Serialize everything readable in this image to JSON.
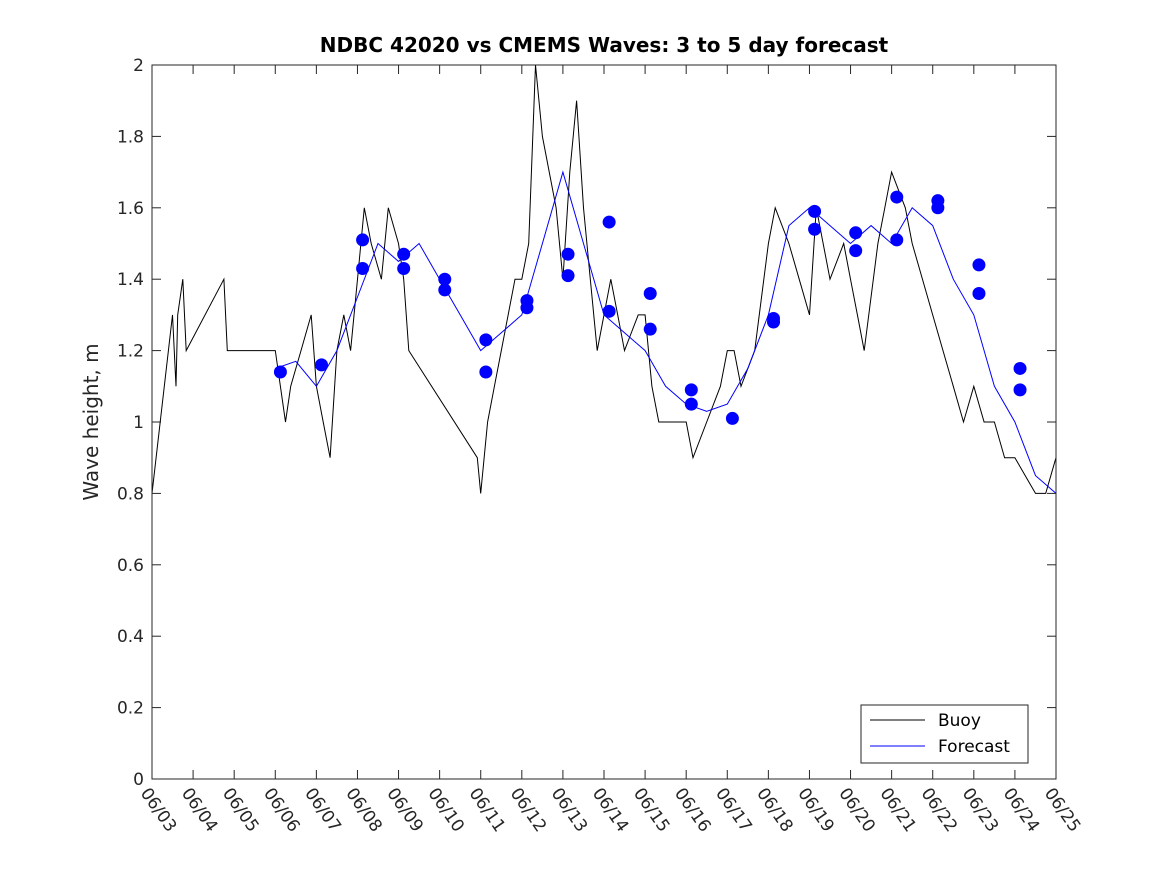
{
  "chart_data": {
    "type": "line",
    "title": "NDBC 42020 vs CMEMS Waves: 3 to 5 day forecast",
    "xlabel": "",
    "ylabel": "Wave height, m",
    "xlim": [
      "06/03",
      "06/25"
    ],
    "ylim": [
      0,
      2
    ],
    "x_tick_labels": [
      "06/03",
      "06/04",
      "06/05",
      "06/06",
      "06/07",
      "06/08",
      "06/09",
      "06/10",
      "06/11",
      "06/12",
      "06/13",
      "06/14",
      "06/15",
      "06/16",
      "06/17",
      "06/18",
      "06/19",
      "06/20",
      "06/21",
      "06/22",
      "06/23",
      "06/24",
      "06/25"
    ],
    "y_ticks": [
      0,
      0.2,
      0.4,
      0.6,
      0.8,
      1,
      1.2,
      1.4,
      1.6,
      1.8,
      2
    ],
    "y_tick_labels": [
      "0",
      "0.2",
      "0.4",
      "0.6",
      "0.8",
      "1",
      "1.2",
      "1.4",
      "1.6",
      "1.8",
      "2"
    ],
    "grid": false,
    "legend_position": "bottom-right",
    "colors": {
      "buoy": "#000000",
      "forecast": "#0000ff",
      "axis": "#262626"
    },
    "series": [
      {
        "name": "Buoy",
        "color": "#000000",
        "points": [
          [
            "06/03 00:00",
            0.8
          ],
          [
            "06/03 12:00",
            1.3
          ],
          [
            "06/03 14:00",
            1.1
          ],
          [
            "06/03 15:00",
            1.3
          ],
          [
            "06/03 18:00",
            1.4
          ],
          [
            "06/03 20:00",
            1.2
          ],
          [
            "06/04 18:00",
            1.4
          ],
          [
            "06/04 20:00",
            1.2
          ],
          [
            "06/05 00:00",
            1.2
          ],
          [
            "06/05 12:00",
            1.2
          ],
          [
            "06/06 00:00",
            1.2
          ],
          [
            "06/06 03:00",
            1.1
          ],
          [
            "06/06 06:00",
            1.0
          ],
          [
            "06/06 09:00",
            1.1
          ],
          [
            "06/06 15:00",
            1.2
          ],
          [
            "06/06 21:00",
            1.3
          ],
          [
            "06/07 00:00",
            1.1
          ],
          [
            "06/07 04:00",
            1.0
          ],
          [
            "06/07 08:00",
            0.9
          ],
          [
            "06/07 12:00",
            1.2
          ],
          [
            "06/07 16:00",
            1.3
          ],
          [
            "06/07 20:00",
            1.2
          ],
          [
            "06/08 00:00",
            1.4
          ],
          [
            "06/08 04:00",
            1.6
          ],
          [
            "06/08 08:00",
            1.5
          ],
          [
            "06/08 14:00",
            1.4
          ],
          [
            "06/08 18:00",
            1.6
          ],
          [
            "06/09 00:00",
            1.5
          ],
          [
            "06/09 03:00",
            1.4
          ],
          [
            "06/09 06:00",
            1.2
          ],
          [
            "06/10 22:00",
            0.9
          ],
          [
            "06/11 00:00",
            0.8
          ],
          [
            "06/11 04:00",
            1.0
          ],
          [
            "06/11 08:00",
            1.1
          ],
          [
            "06/11 12:00",
            1.2
          ],
          [
            "06/11 20:00",
            1.4
          ],
          [
            "06/12 00:00",
            1.4
          ],
          [
            "06/12 04:00",
            1.5
          ],
          [
            "06/12 08:00",
            2.0
          ],
          [
            "06/12 12:00",
            1.8
          ],
          [
            "06/12 20:00",
            1.6
          ],
          [
            "06/13 00:00",
            1.4
          ],
          [
            "06/13 04:00",
            1.7
          ],
          [
            "06/13 08:00",
            1.9
          ],
          [
            "06/13 12:00",
            1.6
          ],
          [
            "06/13 16:00",
            1.4
          ],
          [
            "06/13 20:00",
            1.2
          ],
          [
            "06/14 00:00",
            1.3
          ],
          [
            "06/14 04:00",
            1.4
          ],
          [
            "06/14 08:00",
            1.3
          ],
          [
            "06/14 12:00",
            1.2
          ],
          [
            "06/14 20:00",
            1.3
          ],
          [
            "06/15 00:00",
            1.3
          ],
          [
            "06/15 04:00",
            1.1
          ],
          [
            "06/15 08:00",
            1.0
          ],
          [
            "06/15 16:00",
            1.0
          ],
          [
            "06/16 00:00",
            1.0
          ],
          [
            "06/16 04:00",
            0.9
          ],
          [
            "06/16 12:00",
            1.0
          ],
          [
            "06/16 20:00",
            1.1
          ],
          [
            "06/17 00:00",
            1.2
          ],
          [
            "06/17 04:00",
            1.2
          ],
          [
            "06/17 08:00",
            1.1
          ],
          [
            "06/17 16:00",
            1.2
          ],
          [
            "06/18 00:00",
            1.5
          ],
          [
            "06/18 04:00",
            1.6
          ],
          [
            "06/18 12:00",
            1.5
          ],
          [
            "06/18 18:00",
            1.4
          ],
          [
            "06/19 00:00",
            1.3
          ],
          [
            "06/19 04:00",
            1.6
          ],
          [
            "06/19 12:00",
            1.4
          ],
          [
            "06/19 20:00",
            1.5
          ],
          [
            "06/20 00:00",
            1.4
          ],
          [
            "06/20 04:00",
            1.3
          ],
          [
            "06/20 08:00",
            1.2
          ],
          [
            "06/20 16:00",
            1.5
          ],
          [
            "06/20 20:00",
            1.6
          ],
          [
            "06/21 00:00",
            1.7
          ],
          [
            "06/21 08:00",
            1.6
          ],
          [
            "06/21 12:00",
            1.5
          ],
          [
            "06/22 00:00",
            1.3
          ],
          [
            "06/22 06:00",
            1.2
          ],
          [
            "06/22 12:00",
            1.1
          ],
          [
            "06/22 18:00",
            1.0
          ],
          [
            "06/23 00:00",
            1.1
          ],
          [
            "06/23 06:00",
            1.0
          ],
          [
            "06/23 12:00",
            1.0
          ],
          [
            "06/23 18:00",
            0.9
          ],
          [
            "06/24 00:00",
            0.9
          ],
          [
            "06/24 06:00",
            0.85
          ],
          [
            "06/24 12:00",
            0.8
          ],
          [
            "06/24 18:00",
            0.8
          ],
          [
            "06/25 00:00",
            0.9
          ]
        ]
      },
      {
        "name": "Forecast",
        "color": "#0000ff",
        "points": [
          [
            "06/06 00:00",
            1.15
          ],
          [
            "06/06 12:00",
            1.17
          ],
          [
            "06/07 00:00",
            1.1
          ],
          [
            "06/07 12:00",
            1.2
          ],
          [
            "06/08 00:00",
            1.35
          ],
          [
            "06/08 12:00",
            1.5
          ],
          [
            "06/09 00:00",
            1.45
          ],
          [
            "06/09 12:00",
            1.5
          ],
          [
            "06/10 00:00",
            1.4
          ],
          [
            "06/10 12:00",
            1.3
          ],
          [
            "06/11 00:00",
            1.2
          ],
          [
            "06/11 12:00",
            1.25
          ],
          [
            "06/12 00:00",
            1.3
          ],
          [
            "06/12 12:00",
            1.5
          ],
          [
            "06/13 00:00",
            1.7
          ],
          [
            "06/13 12:00",
            1.5
          ],
          [
            "06/14 00:00",
            1.3
          ],
          [
            "06/14 12:00",
            1.25
          ],
          [
            "06/15 00:00",
            1.2
          ],
          [
            "06/15 12:00",
            1.1
          ],
          [
            "06/16 00:00",
            1.05
          ],
          [
            "06/16 12:00",
            1.03
          ],
          [
            "06/17 00:00",
            1.05
          ],
          [
            "06/17 12:00",
            1.15
          ],
          [
            "06/18 00:00",
            1.3
          ],
          [
            "06/18 12:00",
            1.55
          ],
          [
            "06/19 00:00",
            1.6
          ],
          [
            "06/19 12:00",
            1.55
          ],
          [
            "06/20 00:00",
            1.5
          ],
          [
            "06/20 12:00",
            1.55
          ],
          [
            "06/21 00:00",
            1.5
          ],
          [
            "06/21 12:00",
            1.6
          ],
          [
            "06/22 00:00",
            1.55
          ],
          [
            "06/22 12:00",
            1.4
          ],
          [
            "06/23 00:00",
            1.3
          ],
          [
            "06/23 12:00",
            1.1
          ],
          [
            "06/24 00:00",
            1.0
          ],
          [
            "06/24 12:00",
            0.85
          ],
          [
            "06/25 00:00",
            0.8
          ]
        ]
      }
    ],
    "markers": [
      [
        "06/06 03:00",
        1.14
      ],
      [
        "06/07 03:00",
        1.16
      ],
      [
        "06/08 03:00",
        1.51
      ],
      [
        "06/08 03:00",
        1.43
      ],
      [
        "06/09 03:00",
        1.47
      ],
      [
        "06/09 03:00",
        1.43
      ],
      [
        "06/10 03:00",
        1.4
      ],
      [
        "06/10 03:00",
        1.37
      ],
      [
        "06/11 03:00",
        1.23
      ],
      [
        "06/11 03:00",
        1.14
      ],
      [
        "06/12 03:00",
        1.34
      ],
      [
        "06/12 03:00",
        1.32
      ],
      [
        "06/13 03:00",
        1.47
      ],
      [
        "06/13 03:00",
        1.41
      ],
      [
        "06/14 03:00",
        1.56
      ],
      [
        "06/14 03:00",
        1.31
      ],
      [
        "06/15 03:00",
        1.36
      ],
      [
        "06/15 03:00",
        1.26
      ],
      [
        "06/16 03:00",
        1.09
      ],
      [
        "06/16 03:00",
        1.05
      ],
      [
        "06/17 03:00",
        1.01
      ],
      [
        "06/18 03:00",
        1.29
      ],
      [
        "06/18 03:00",
        1.28
      ],
      [
        "06/19 03:00",
        1.59
      ],
      [
        "06/19 03:00",
        1.54
      ],
      [
        "06/20 03:00",
        1.53
      ],
      [
        "06/20 03:00",
        1.48
      ],
      [
        "06/21 03:00",
        1.63
      ],
      [
        "06/21 03:00",
        1.51
      ],
      [
        "06/22 03:00",
        1.62
      ],
      [
        "06/22 03:00",
        1.6
      ],
      [
        "06/23 03:00",
        1.44
      ],
      [
        "06/23 03:00",
        1.36
      ],
      [
        "06/24 03:00",
        1.15
      ],
      [
        "06/24 03:00",
        1.09
      ]
    ],
    "legend": [
      "Buoy",
      "Forecast"
    ]
  }
}
